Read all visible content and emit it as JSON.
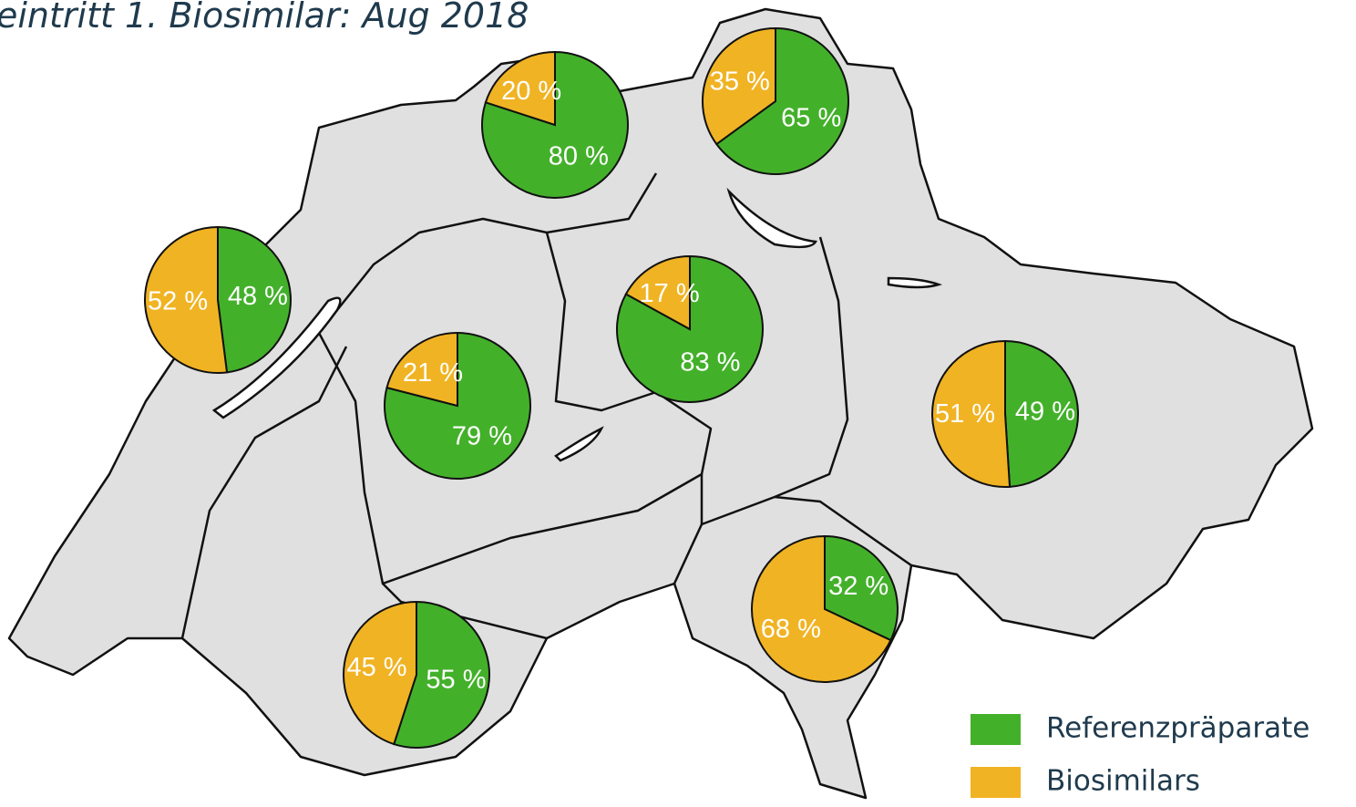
{
  "map": {
    "title": "eintritt 1. Biosimilar: Aug 2018",
    "series": [
      {
        "name": "Referenzpräparate",
        "color": "#43b02a"
      },
      {
        "name": "Biosimilars",
        "color": "#f0b323"
      }
    ],
    "pies": [
      {
        "values": [
          80,
          20
        ],
        "value_labels": [
          "80 %",
          "20 %"
        ]
      },
      {
        "values": [
          65,
          35
        ],
        "value_labels": [
          "65 %",
          "35 %"
        ]
      },
      {
        "values": [
          48,
          52
        ],
        "value_labels": [
          "48 %",
          "52 %"
        ]
      },
      {
        "values": [
          83,
          17
        ],
        "value_labels": [
          "83 %",
          "17 %"
        ]
      },
      {
        "values": [
          79,
          21
        ],
        "value_labels": [
          "79 %",
          "21 %"
        ]
      },
      {
        "values": [
          49,
          51
        ],
        "value_labels": [
          "49 %",
          "51 %"
        ]
      },
      {
        "values": [
          32,
          68
        ],
        "value_labels": [
          "32 %",
          "68 %"
        ]
      },
      {
        "values": [
          55,
          45
        ],
        "value_labels": [
          "55 %",
          "45 %"
        ]
      }
    ]
  }
}
